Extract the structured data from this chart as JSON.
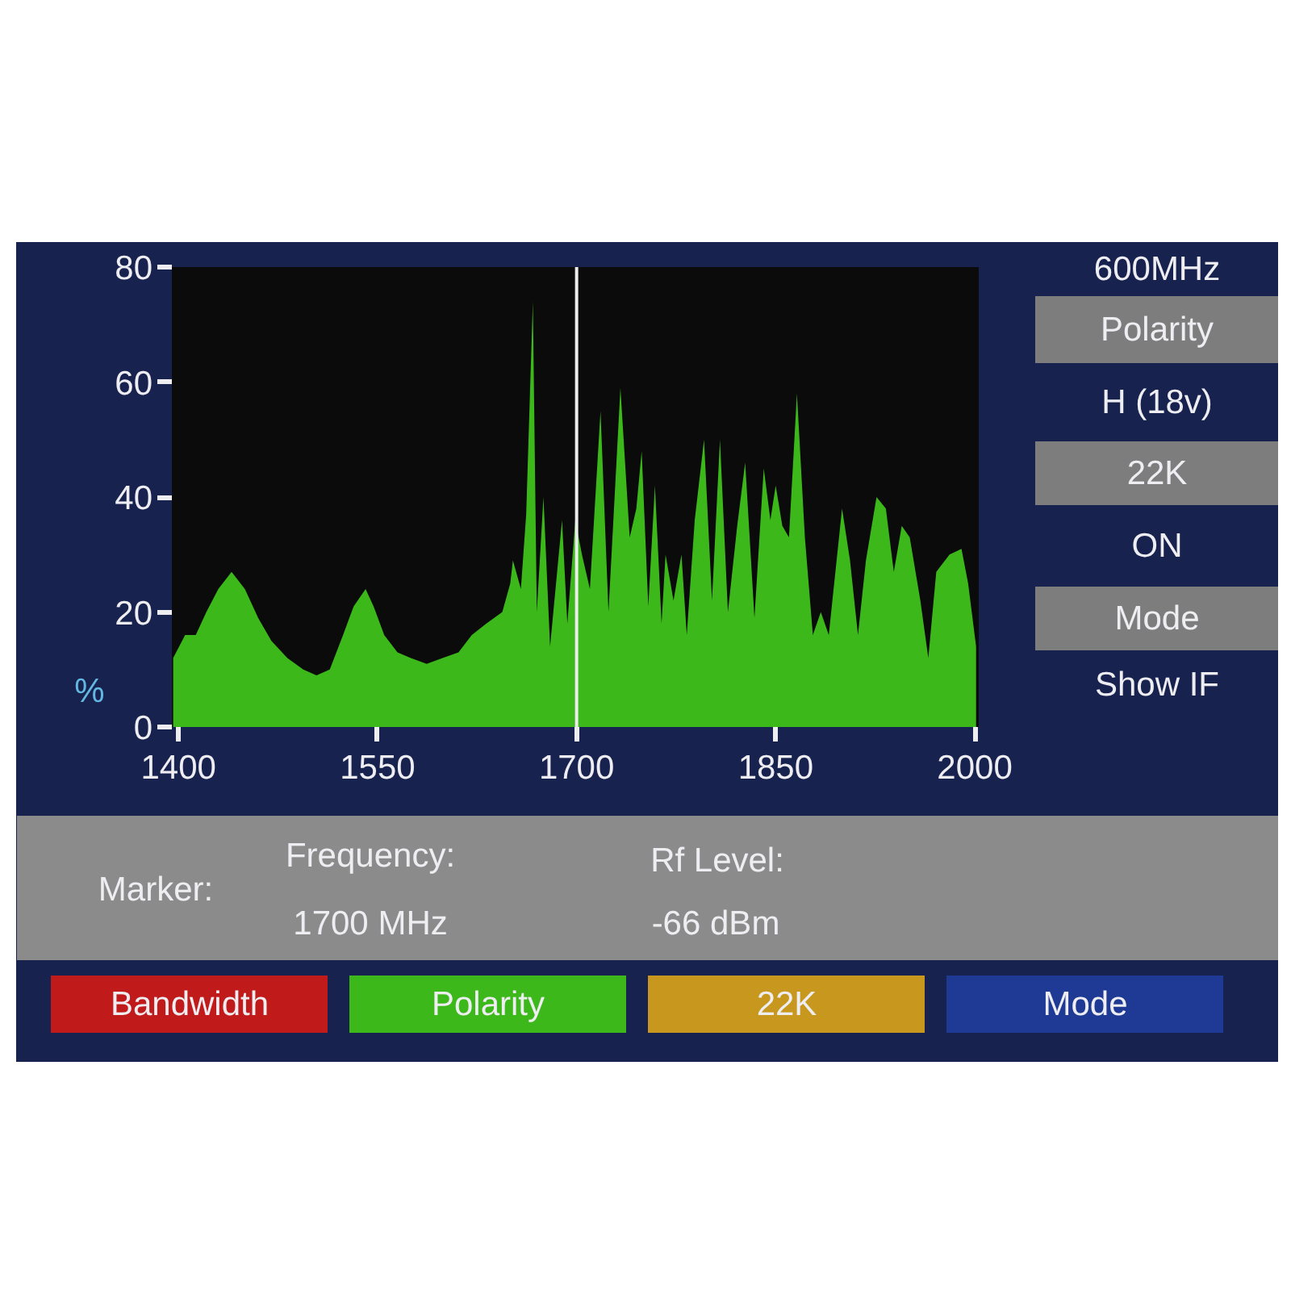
{
  "chart_data": {
    "type": "area",
    "ylabel": "%",
    "x": [
      1396,
      1405,
      1413,
      1421,
      1430,
      1440,
      1450,
      1460,
      1470,
      1482,
      1494,
      1504,
      1514,
      1524,
      1532,
      1541,
      1547,
      1555,
      1565,
      1575,
      1587,
      1599,
      1611,
      1621,
      1632,
      1644,
      1650,
      1652,
      1658,
      1662,
      1667,
      1670,
      1675,
      1680,
      1689,
      1693,
      1699,
      1704,
      1710,
      1718,
      1724,
      1733,
      1740,
      1745,
      1749,
      1754,
      1759,
      1764,
      1767,
      1773,
      1779,
      1783,
      1789,
      1796,
      1802,
      1808,
      1814,
      1821,
      1827,
      1834,
      1841,
      1846,
      1850,
      1855,
      1860,
      1866,
      1872,
      1878,
      1884,
      1890,
      1900,
      1906,
      1912,
      1918,
      1926,
      1933,
      1939,
      1945,
      1951,
      1959,
      1965,
      1971,
      1981,
      1990,
      1995,
      2001
    ],
    "values": [
      12,
      16,
      16,
      20,
      24,
      27,
      24,
      19,
      15,
      12,
      10,
      9,
      10,
      16,
      21,
      24,
      21,
      16,
      13,
      12,
      11,
      12,
      13,
      16,
      18,
      20,
      25,
      29,
      24,
      37,
      74,
      20,
      40,
      14,
      36,
      18,
      36,
      30,
      24,
      55,
      20,
      59,
      33,
      38,
      48,
      21,
      42,
      18,
      30,
      22,
      30,
      16,
      36,
      50,
      22,
      50,
      20,
      35,
      46,
      19,
      45,
      36,
      42,
      35,
      33,
      58,
      33,
      16,
      20,
      16,
      38,
      29,
      16,
      29,
      40,
      38,
      27,
      35,
      33,
      22,
      12,
      27,
      30,
      31,
      25,
      14
    ],
    "color": "#3cb81a",
    "xlim": [
      1395,
      2003
    ],
    "ylim": [
      0,
      80
    ],
    "xticks": [
      1400,
      1550,
      1700,
      1850,
      2000
    ],
    "yticks": [
      0,
      20,
      40,
      60,
      80
    ],
    "ref_lines": [
      {
        "axis": "x",
        "value": 1700,
        "color": "#ececec"
      }
    ],
    "annotations": [
      "600MHz",
      "Polarity",
      "H (18v)",
      "22K",
      "ON",
      "Mode",
      "Show IF",
      "Marker:",
      "Frequency:",
      "1700 MHz",
      "Rf Level:",
      "-66 dBm",
      "Bandwidth",
      "Polarity",
      "22K",
      "Mode"
    ]
  }
}
